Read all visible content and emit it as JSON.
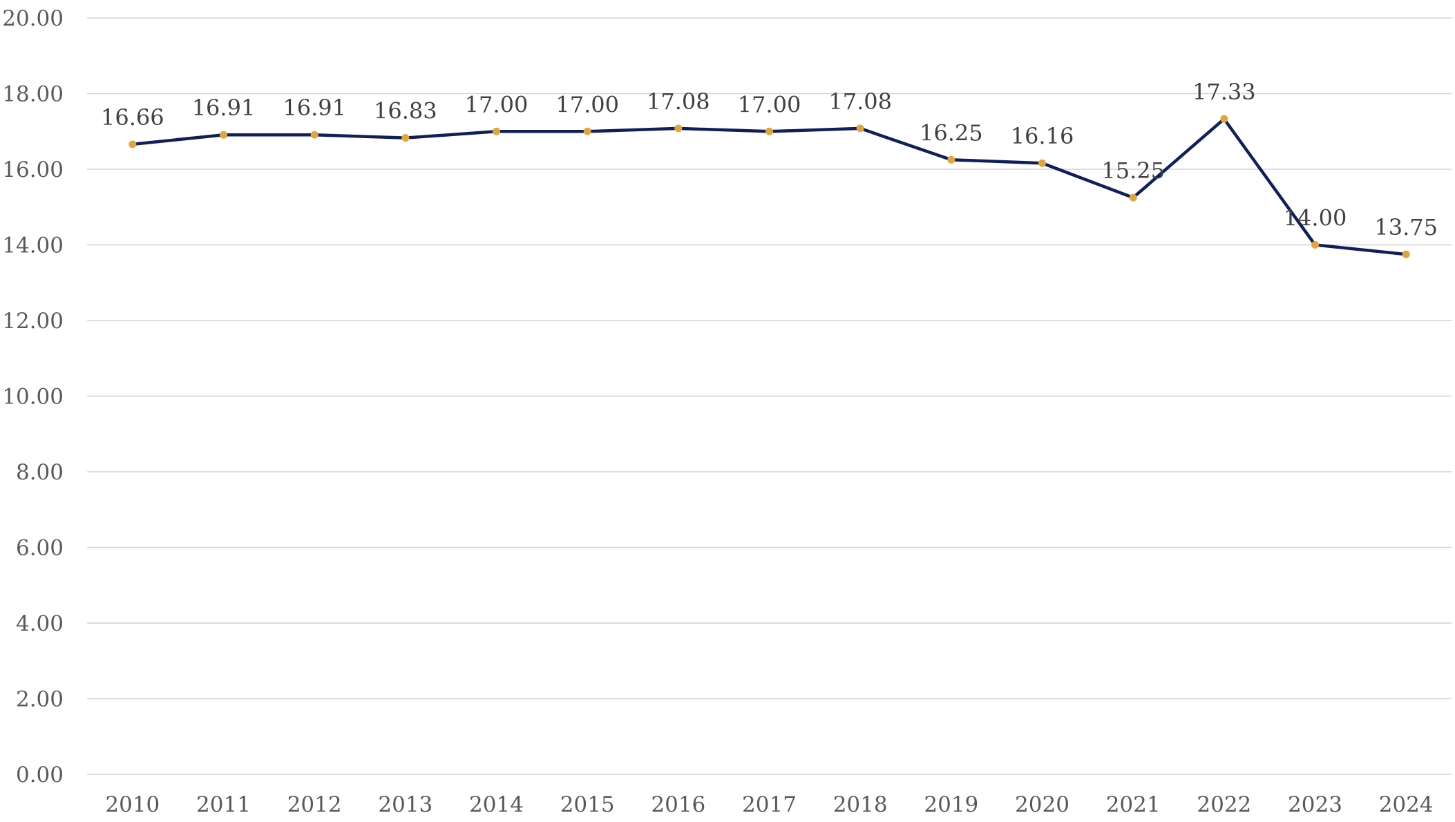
{
  "chart_data": {
    "type": "line",
    "title": "",
    "xlabel": "",
    "ylabel": "",
    "categories": [
      "2010",
      "2011",
      "2012",
      "2013",
      "2014",
      "2015",
      "2016",
      "2017",
      "2018",
      "2019",
      "2020",
      "2021",
      "2022",
      "2023",
      "2024"
    ],
    "series": [
      {
        "values": [
          16.66,
          16.91,
          16.91,
          16.83,
          17.0,
          17.0,
          17.08,
          17.0,
          17.08,
          16.25,
          16.16,
          15.25,
          17.33,
          14.0,
          13.75
        ],
        "labels": [
          "16.66",
          "16.91",
          "16.91",
          "16.83",
          "17.00",
          "17.00",
          "17.08",
          "17.00",
          "17.08",
          "16.25",
          "16.16",
          "15.25",
          "17.33",
          "14.00",
          "13.75"
        ],
        "line_color": "#0f1f5c",
        "marker_color": "#e0a63a"
      }
    ],
    "ylim": [
      0,
      20
    ],
    "y_ticks": [
      "0.00",
      "2.00",
      "4.00",
      "6.00",
      "8.00",
      "10.00",
      "12.00",
      "14.00",
      "16.00",
      "18.00",
      "20.00"
    ],
    "grid": true,
    "legend": "none"
  }
}
